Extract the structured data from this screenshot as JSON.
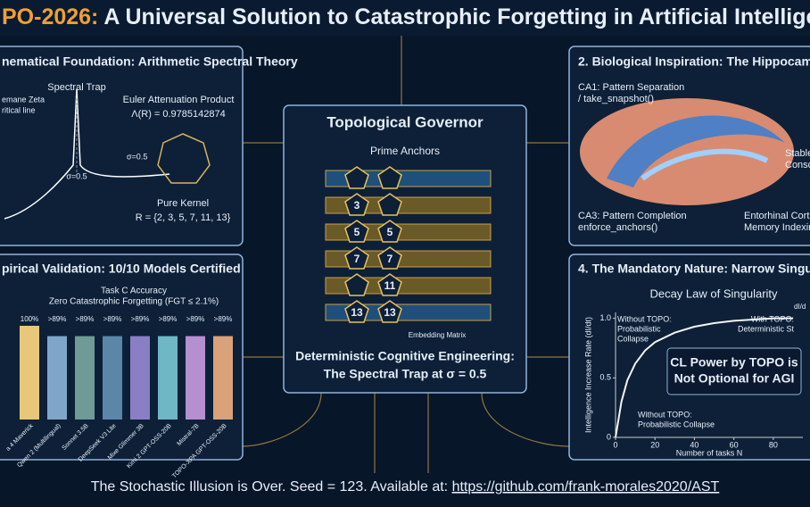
{
  "title": {
    "prefix": "PO-2026:",
    "main": "A Universal Solution to Catastrophic Forgetting in Artificial Intellige"
  },
  "foundation": {
    "heading": "nematical Foundation: Arithmetic Spectral Theory",
    "zeta_label": "emane Zeta",
    "critical_label": "ritical line",
    "trap_label": "Spectral Trap",
    "sigma_right": "σ=0.5",
    "sigma_bottom": "σ=0.5",
    "euler_label": "Euler Attenuation Product",
    "lambda": "Λ(R) = 0.9785142874",
    "kernel_label": "Pure Kernel",
    "kernel_set": "R = {2, 3, 5, 7, 11, 13}"
  },
  "validation": {
    "heading": "pirical Validation: 10/10 Models Certified",
    "chart_title": "Task C Accuracy",
    "chart_subtitle": "Zero Catastrophic Forgetting (FGT ≤ 2.1%)",
    "models": [
      "a 4 Maverick",
      "Qwen 2 (Multilingual)",
      "Sonnet 3.5B",
      "DeepSeek V3 Lite",
      "Mixe Glimmer 3B",
      "Kimi 2 GPT-OSS-20B",
      "Mistral-7B",
      "TOPO-XPA GPT-OSS-20B"
    ],
    "values": [
      100,
      89,
      89,
      89,
      89,
      89,
      89,
      89
    ],
    "value_labels": [
      "100%",
      ">89%",
      ">89%",
      ">89%",
      ">89%",
      ">89%",
      ">89%",
      ">89%"
    ],
    "colors": [
      "#e8c77a",
      "#7fa6c9",
      "#6f9a96",
      "#5c86a8",
      "#8a7fc4",
      "#6fb7c4",
      "#b58fcf",
      "#d9a27a"
    ]
  },
  "governor": {
    "title": "Topological Governor",
    "anchors_label": "Prime Anchors",
    "rows": [
      {},
      {
        "left": "3"
      },
      {
        "left": "5",
        "right": "5"
      },
      {
        "left": "7",
        "right": "7"
      },
      {
        "right": "11"
      },
      {
        "left": "13",
        "right": "13"
      }
    ],
    "matrix_label": "Embedding Matrix",
    "engineering": "Deterministic Cognitive Engineering:",
    "trap": "The Spectral Trap at σ = 0.5"
  },
  "biology": {
    "heading": "2. Biological Inspiration: The Hippocampal",
    "ca1": [
      "CA1: Pattern Separation",
      "/ take_snapshot()"
    ],
    "stable": [
      "Stable",
      "Conso"
    ],
    "ca3": [
      "CA3: Pattern Completion",
      "enforce_anchors()"
    ],
    "entorhinal": [
      "Entorhinal Cort",
      "Memory Indexin"
    ]
  },
  "mandatory": {
    "heading": "4. The Mandatory Nature: Narrow Singu",
    "chart_title": "Decay Law of Singularity",
    "ylabel": "Intelligence Increase Rate (dI/dt)",
    "xlabel": "Number of tasks N",
    "corner": "dI/d",
    "x": [
      0,
      3,
      6,
      10,
      15,
      20,
      30,
      40,
      50,
      60,
      70,
      80,
      90
    ],
    "y": [
      0,
      0.3,
      0.48,
      0.62,
      0.73,
      0.8,
      0.88,
      0.93,
      0.96,
      0.98,
      0.99,
      1,
      1
    ],
    "xlim": [
      0,
      95
    ],
    "ylim": [
      0,
      1.05
    ],
    "xticks": [
      0,
      20,
      40,
      60,
      80
    ],
    "yticks": [
      0,
      0.5,
      {
        "value": 1,
        "label": "1.0"
      }
    ],
    "without_top": [
      "Without TOPO:",
      "Probabilistic",
      "Collapse"
    ],
    "with_topo": [
      "With TOPO:",
      "Deterministic St"
    ],
    "callout": [
      "CL Power by TOPO is",
      "Not Optional for AGI"
    ],
    "without_bottom": [
      "Without TOPO:",
      "Probabilistic Collapse"
    ]
  },
  "footer": {
    "text": "The Stochastic Illusion is Over. Seed = 123. Available at:",
    "link": "https://github.com/frank-morales2020/AST"
  }
}
